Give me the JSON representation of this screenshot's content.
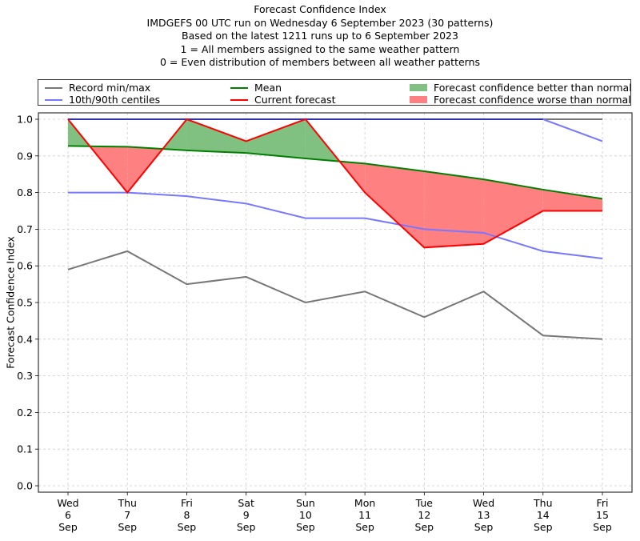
{
  "title_lines": [
    "Forecast Confidence Index",
    "IMDGEFS 00 UTC run on Wednesday 6 September 2023 (30 patterns)",
    "Based on the latest 1211 runs up to 6 September 2023",
    "1 = All members assigned to the same weather pattern",
    "0 = Even distribution of members between all weather patterns"
  ],
  "legend": {
    "record": "Record min/max",
    "centiles": "10th/90th centiles",
    "mean": "Mean",
    "current": "Current forecast",
    "better": "Forecast confidence better than normal",
    "worse": "Forecast confidence worse than normal"
  },
  "colors": {
    "record": "#777777",
    "centiles": "#7777ff",
    "mean": "#008000",
    "current": "#ff0000",
    "better": "#80c080",
    "worse": "#ff8080",
    "max_overlap": "#3333aa"
  },
  "chart_data": {
    "type": "line",
    "title": "Forecast Confidence Index",
    "xlabel": "",
    "ylabel": "Forecast Confidence Index",
    "ylim": [
      0,
      1.0
    ],
    "yticks": [
      "0.0",
      "0.1",
      "0.2",
      "0.3",
      "0.4",
      "0.5",
      "0.6",
      "0.7",
      "0.8",
      "0.9",
      "1.0"
    ],
    "grid": true,
    "legend_position": "top",
    "categories": [
      [
        "Wed",
        "6",
        "Sep"
      ],
      [
        "Thu",
        "7",
        "Sep"
      ],
      [
        "Fri",
        "8",
        "Sep"
      ],
      [
        "Sat",
        "9",
        "Sep"
      ],
      [
        "Sun",
        "10",
        "Sep"
      ],
      [
        "Mon",
        "11",
        "Sep"
      ],
      [
        "Tue",
        "12",
        "Sep"
      ],
      [
        "Wed",
        "13",
        "Sep"
      ],
      [
        "Thu",
        "14",
        "Sep"
      ],
      [
        "Fri",
        "15",
        "Sep"
      ]
    ],
    "series": [
      {
        "name": "Record max",
        "values": [
          1.0,
          1.0,
          1.0,
          1.0,
          1.0,
          1.0,
          1.0,
          1.0,
          1.0,
          1.0
        ]
      },
      {
        "name": "Record min",
        "values": [
          0.59,
          0.64,
          0.55,
          0.57,
          0.5,
          0.53,
          0.46,
          0.53,
          0.41,
          0.4
        ]
      },
      {
        "name": "90th centile",
        "values": [
          1.0,
          1.0,
          1.0,
          1.0,
          1.0,
          1.0,
          1.0,
          1.0,
          1.0,
          0.94
        ]
      },
      {
        "name": "10th centile",
        "values": [
          0.8,
          0.8,
          0.79,
          0.77,
          0.73,
          0.73,
          0.7,
          0.69,
          0.64,
          0.62
        ]
      },
      {
        "name": "Mean",
        "values": [
          0.927,
          0.925,
          0.915,
          0.908,
          0.893,
          0.879,
          0.858,
          0.836,
          0.808,
          0.783
        ]
      },
      {
        "name": "Current forecast",
        "values": [
          1.0,
          0.8,
          1.0,
          0.94,
          1.0,
          0.8,
          0.65,
          0.66,
          0.75,
          0.75
        ]
      }
    ]
  }
}
